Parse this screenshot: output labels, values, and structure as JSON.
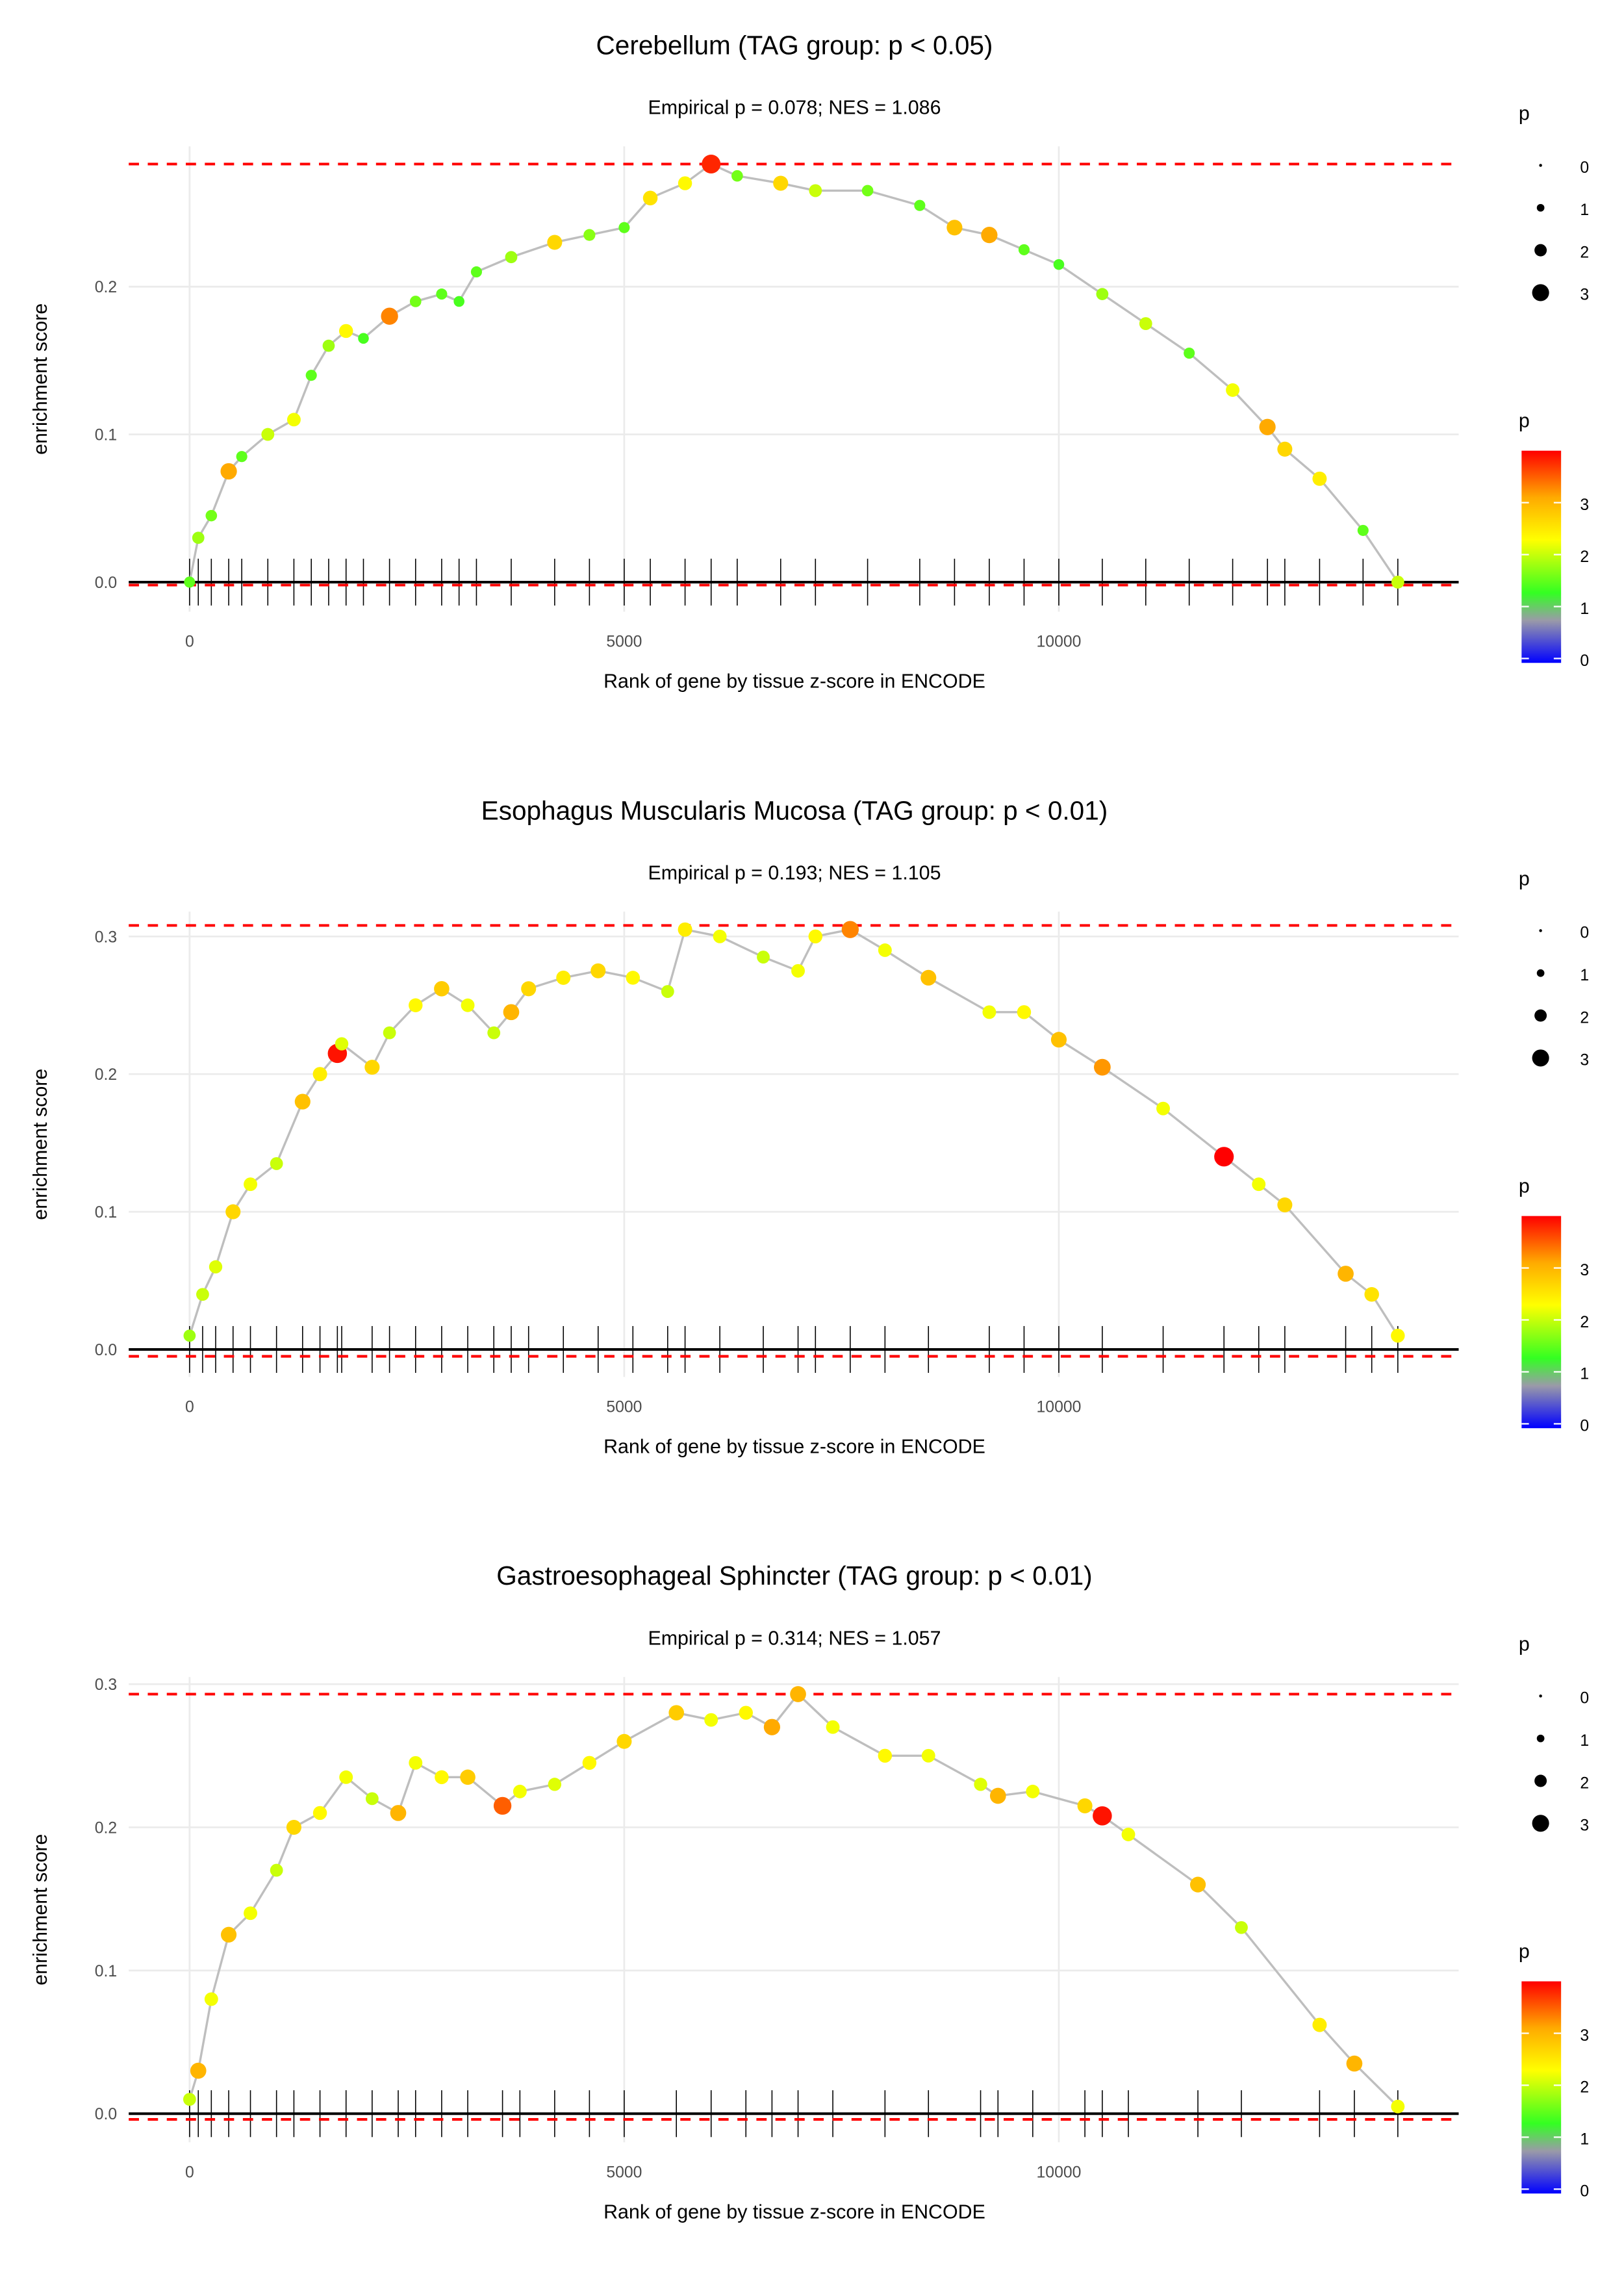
{
  "chart_data": [
    {
      "type": "line",
      "title": "Cerebellum (TAG group: p < 0.05)",
      "subtitle": "Empirical p = 0.078; NES = 1.086",
      "xlabel": "Rank of gene by tissue z-score in ENCODE",
      "ylabel": "enrichment score",
      "xlim": [
        -700,
        14600
      ],
      "ylim": [
        -0.02,
        0.295
      ],
      "xticks": [
        "0",
        "5000",
        "10000"
      ],
      "yticks": [
        "0.0",
        "0.1",
        "0.2"
      ],
      "max_es": 0.283,
      "min_es": -0.002,
      "points": [
        [
          0,
          0,
          1.5
        ],
        [
          100,
          0.03,
          1.8
        ],
        [
          250,
          0.045,
          1.6
        ],
        [
          450,
          0.075,
          3.0
        ],
        [
          600,
          0.085,
          1.5
        ],
        [
          900,
          0.1,
          2.0
        ],
        [
          1200,
          0.11,
          2.2
        ],
        [
          1400,
          0.14,
          1.5
        ],
        [
          1600,
          0.16,
          1.8
        ],
        [
          1800,
          0.17,
          2.3
        ],
        [
          2000,
          0.165,
          1.4
        ],
        [
          2300,
          0.18,
          3.2
        ],
        [
          2600,
          0.19,
          1.6
        ],
        [
          2900,
          0.195,
          1.5
        ],
        [
          3100,
          0.19,
          1.4
        ],
        [
          3300,
          0.21,
          1.5
        ],
        [
          3700,
          0.22,
          1.8
        ],
        [
          4200,
          0.23,
          2.6
        ],
        [
          4600,
          0.235,
          1.7
        ],
        [
          5000,
          0.24,
          1.5
        ],
        [
          5300,
          0.26,
          2.5
        ],
        [
          5700,
          0.27,
          2.3
        ],
        [
          6000,
          0.283,
          3.7
        ],
        [
          6300,
          0.275,
          1.6
        ],
        [
          6800,
          0.27,
          2.6
        ],
        [
          7200,
          0.265,
          2.0
        ],
        [
          7800,
          0.265,
          1.6
        ],
        [
          8400,
          0.255,
          1.5
        ],
        [
          8800,
          0.24,
          2.8
        ],
        [
          9200,
          0.235,
          3.0
        ],
        [
          9600,
          0.225,
          1.5
        ],
        [
          10000,
          0.215,
          1.4
        ],
        [
          10500,
          0.195,
          1.8
        ],
        [
          11000,
          0.175,
          2.0
        ],
        [
          11500,
          0.155,
          1.5
        ],
        [
          12000,
          0.13,
          2.2
        ],
        [
          12400,
          0.105,
          3.0
        ],
        [
          12600,
          0.09,
          2.6
        ],
        [
          13000,
          0.07,
          2.4
        ],
        [
          13500,
          0.035,
          1.5
        ],
        [
          13900,
          0.0,
          2.0
        ]
      ]
    },
    {
      "type": "line",
      "title": "Esophagus Muscularis Mucosa (TAG group: p < 0.01)",
      "subtitle": "Empirical p = 0.193; NES = 1.105",
      "xlabel": "Rank of gene by tissue z-score in ENCODE",
      "ylabel": "enrichment score",
      "xlim": [
        -700,
        14600
      ],
      "ylim": [
        -0.02,
        0.318
      ],
      "xticks": [
        "0",
        "5000",
        "10000"
      ],
      "yticks": [
        "0.0",
        "0.1",
        "0.2",
        "0.3"
      ],
      "max_es": 0.308,
      "min_es": -0.005,
      "points": [
        [
          0,
          0.01,
          1.8
        ],
        [
          150,
          0.04,
          2.0
        ],
        [
          300,
          0.06,
          2.1
        ],
        [
          500,
          0.1,
          2.6
        ],
        [
          700,
          0.12,
          2.2
        ],
        [
          1000,
          0.135,
          2.0
        ],
        [
          1300,
          0.18,
          2.8
        ],
        [
          1500,
          0.2,
          2.4
        ],
        [
          1700,
          0.215,
          3.8
        ],
        [
          1750,
          0.222,
          2.1
        ],
        [
          2100,
          0.205,
          2.6
        ],
        [
          2300,
          0.23,
          2.0
        ],
        [
          2600,
          0.25,
          2.3
        ],
        [
          2900,
          0.262,
          2.7
        ],
        [
          3200,
          0.25,
          2.2
        ],
        [
          3500,
          0.23,
          2.0
        ],
        [
          3700,
          0.245,
          2.9
        ],
        [
          3900,
          0.262,
          2.6
        ],
        [
          4300,
          0.27,
          2.4
        ],
        [
          4700,
          0.275,
          2.6
        ],
        [
          5100,
          0.27,
          2.3
        ],
        [
          5500,
          0.26,
          2.0
        ],
        [
          5700,
          0.305,
          2.4
        ],
        [
          6100,
          0.3,
          2.2
        ],
        [
          6600,
          0.285,
          2.0
        ],
        [
          7000,
          0.275,
          2.2
        ],
        [
          7200,
          0.3,
          2.3
        ],
        [
          7600,
          0.305,
          3.2
        ],
        [
          8000,
          0.29,
          2.2
        ],
        [
          8500,
          0.27,
          2.8
        ],
        [
          9200,
          0.245,
          2.2
        ],
        [
          9600,
          0.245,
          2.3
        ],
        [
          10000,
          0.225,
          2.8
        ],
        [
          10500,
          0.205,
          3.1
        ],
        [
          11200,
          0.175,
          2.2
        ],
        [
          11900,
          0.14,
          3.9
        ],
        [
          12300,
          0.12,
          2.2
        ],
        [
          12600,
          0.105,
          2.6
        ],
        [
          13300,
          0.055,
          2.9
        ],
        [
          13600,
          0.04,
          2.5
        ],
        [
          13900,
          0.01,
          2.3
        ]
      ]
    },
    {
      "type": "line",
      "title": "Gastroesophageal Sphincter (TAG group: p < 0.01)",
      "subtitle": "Empirical p = 0.314; NES = 1.057",
      "xlabel": "Rank of gene by tissue z-score in ENCODE",
      "ylabel": "enrichment score",
      "xlim": [
        -700,
        14600
      ],
      "ylim": [
        -0.02,
        0.305
      ],
      "xticks": [
        "0",
        "5000",
        "10000"
      ],
      "yticks": [
        "0.0",
        "0.1",
        "0.2",
        "0.3"
      ],
      "max_es": 0.293,
      "min_es": -0.004,
      "points": [
        [
          0,
          0.01,
          2.0
        ],
        [
          100,
          0.03,
          2.9
        ],
        [
          250,
          0.08,
          2.2
        ],
        [
          450,
          0.125,
          2.8
        ],
        [
          700,
          0.14,
          2.2
        ],
        [
          1000,
          0.17,
          2.0
        ],
        [
          1200,
          0.2,
          2.6
        ],
        [
          1500,
          0.21,
          2.3
        ],
        [
          1800,
          0.235,
          2.2
        ],
        [
          2100,
          0.22,
          2.0
        ],
        [
          2400,
          0.21,
          2.9
        ],
        [
          2600,
          0.245,
          2.2
        ],
        [
          2900,
          0.235,
          2.3
        ],
        [
          3200,
          0.235,
          2.7
        ],
        [
          3600,
          0.215,
          3.4
        ],
        [
          3800,
          0.225,
          2.2
        ],
        [
          4200,
          0.23,
          2.1
        ],
        [
          4600,
          0.245,
          2.3
        ],
        [
          5000,
          0.26,
          2.6
        ],
        [
          5600,
          0.28,
          2.7
        ],
        [
          6000,
          0.275,
          2.2
        ],
        [
          6400,
          0.28,
          2.3
        ],
        [
          6700,
          0.27,
          3.0
        ],
        [
          7000,
          0.293,
          2.9
        ],
        [
          7400,
          0.27,
          2.2
        ],
        [
          8000,
          0.25,
          2.3
        ],
        [
          8500,
          0.25,
          2.2
        ],
        [
          9100,
          0.23,
          2.1
        ],
        [
          9300,
          0.222,
          2.9
        ],
        [
          9700,
          0.225,
          2.2
        ],
        [
          10300,
          0.215,
          2.6
        ],
        [
          10500,
          0.208,
          3.8
        ],
        [
          10800,
          0.195,
          2.2
        ],
        [
          11600,
          0.16,
          2.8
        ],
        [
          12100,
          0.13,
          2.0
        ],
        [
          13000,
          0.062,
          2.4
        ],
        [
          13400,
          0.035,
          2.9
        ],
        [
          13900,
          0.005,
          2.2
        ]
      ]
    }
  ],
  "legend": {
    "size_title": "p",
    "size_labels": [
      "0",
      "1",
      "2",
      "3"
    ],
    "color_title": "p",
    "color_labels": [
      "0",
      "1",
      "2",
      "3"
    ]
  },
  "colors": {
    "dashed": "#ff0000",
    "line": "#bebebe",
    "grid": "#ebebeb"
  }
}
